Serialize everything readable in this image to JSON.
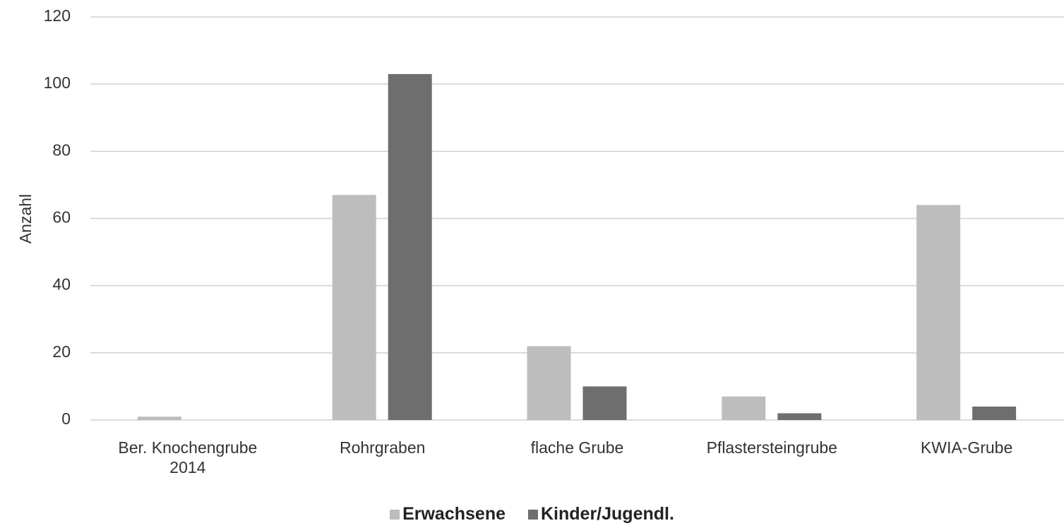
{
  "chart_data": {
    "type": "bar",
    "y_label": "Anzahl",
    "categories": [
      "Ber. Knochengrube 2014",
      "Rohrgraben",
      "flache Grube",
      "Pflastersteingrube",
      "KWIA-Grube"
    ],
    "series": [
      {
        "name": "Erwachsene",
        "color": "#bdbdbd",
        "values": [
          1,
          67,
          22,
          7,
          64
        ]
      },
      {
        "name": "Kinder/Jugendl.",
        "color": "#6e6e6e",
        "values": [
          0,
          103,
          10,
          2,
          4
        ]
      }
    ],
    "ylim": [
      0,
      120
    ],
    "yticks": [
      0,
      20,
      40,
      60,
      80,
      100,
      120
    ],
    "grid": true,
    "legend": "bottom"
  }
}
